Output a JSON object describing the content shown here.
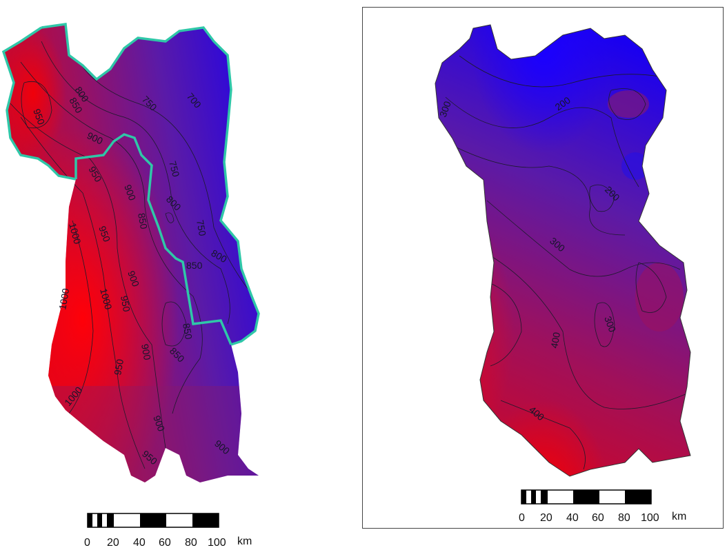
{
  "maps": [
    {
      "id": "left",
      "contour_labels": [
        "700",
        "750",
        "750",
        "750",
        "800",
        "800",
        "800",
        "850",
        "850",
        "850",
        "850",
        "850",
        "900",
        "900",
        "900",
        "900",
        "900",
        "900",
        "950",
        "950",
        "950",
        "950",
        "950",
        "950",
        "1000",
        "1000",
        "1000",
        "1000"
      ],
      "scale_bar": {
        "ticks": [
          "0",
          "20",
          "40",
          "60",
          "80",
          "100"
        ],
        "unit": "km"
      },
      "boundary_color": "#2fc7a8"
    },
    {
      "id": "right",
      "contour_labels": [
        "300",
        "200",
        "200",
        "300",
        "400",
        "300",
        "400"
      ],
      "scale_bar": {
        "ticks": [
          "0",
          "20",
          "40",
          "60",
          "80",
          "100"
        ],
        "unit": "km"
      }
    }
  ],
  "colors": {
    "high": "#e8000a",
    "mid": "#6a1a9a",
    "low": "#1a00f0"
  }
}
